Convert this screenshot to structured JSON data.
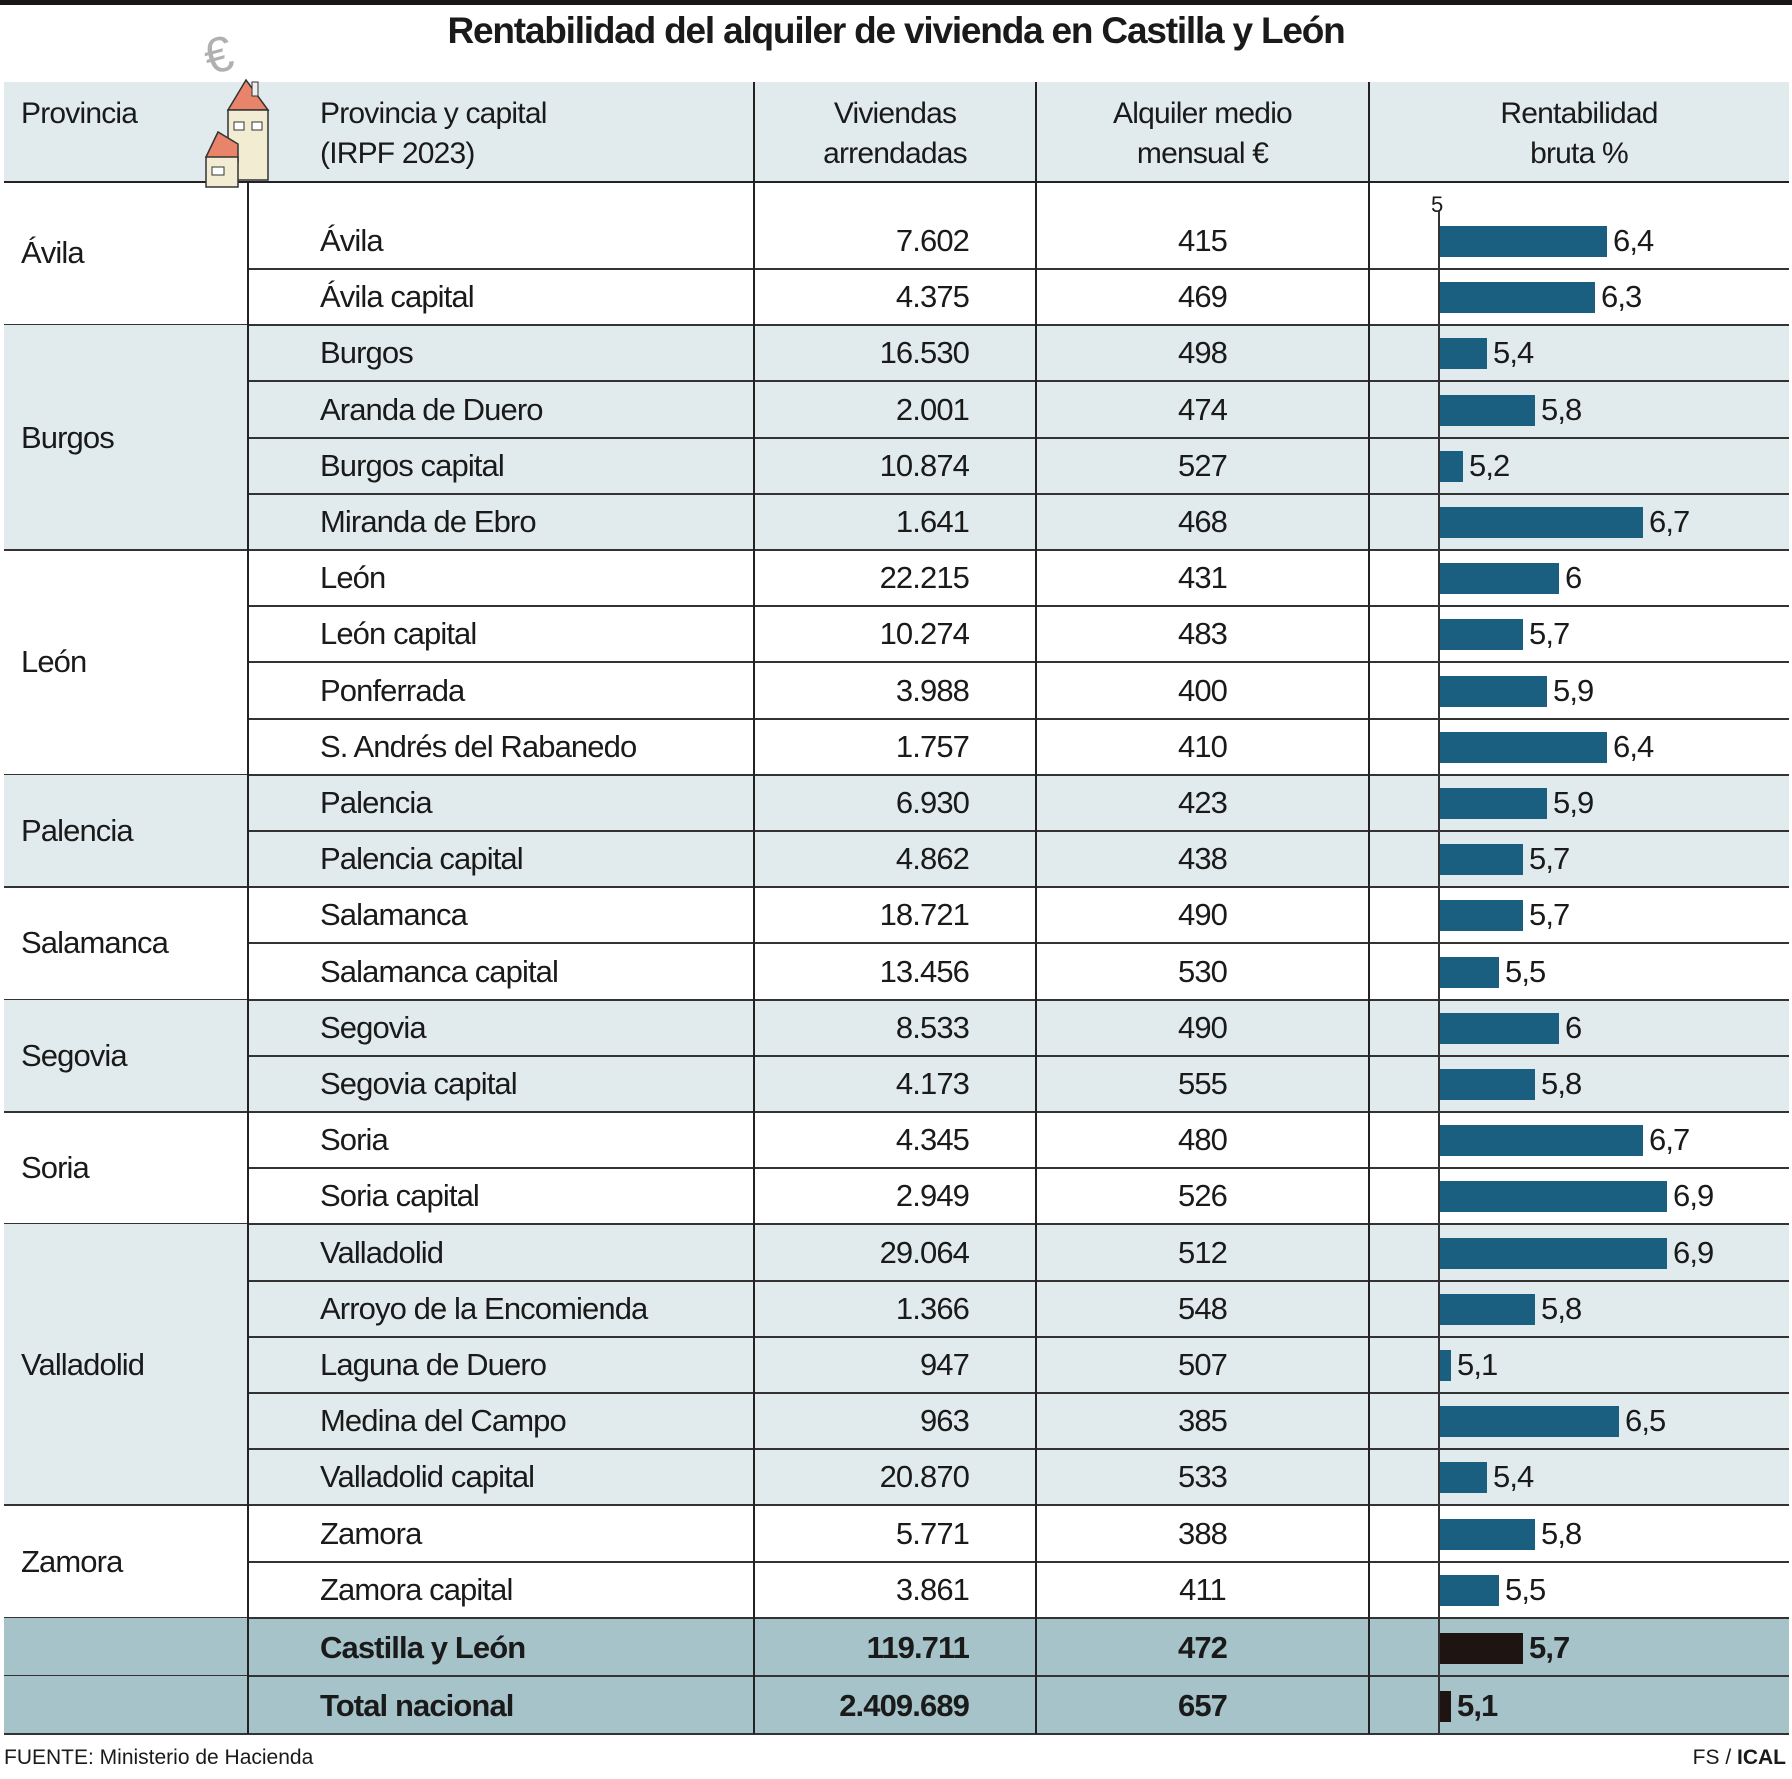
{
  "title": "Rentabilidad del alquiler de vivienda en Castilla y León",
  "header": {
    "provincia": "Provincia",
    "provincia_capital": [
      "Provincia y capital",
      "(IRPF 2023)"
    ],
    "viviendas": [
      "Viviendas",
      "arrendadas"
    ],
    "alquiler": [
      "Alquiler medio",
      "mensual €"
    ],
    "rentabilidad": [
      "Rentabilidad",
      "bruta %"
    ]
  },
  "icon": "house-with-euro-icon",
  "colors": {
    "band": "#e1ebed",
    "total_band": "#a5c3c9",
    "bar": "#1a5f80",
    "total_bar": "#1e1412"
  },
  "chart_data": {
    "type": "table",
    "axis_label": "5",
    "axis_origin": 5,
    "groups": [
      {
        "province": "Ávila",
        "shaded": false,
        "rows": [
          {
            "name": "Ávila",
            "viviendas": "7.602",
            "alquiler": "415",
            "rent": 6.4,
            "label": "6,4"
          },
          {
            "name": "Ávila capital",
            "viviendas": "4.375",
            "alquiler": "469",
            "rent": 6.3,
            "label": "6,3"
          }
        ]
      },
      {
        "province": "Burgos",
        "shaded": true,
        "rows": [
          {
            "name": "Burgos",
            "viviendas": "16.530",
            "alquiler": "498",
            "rent": 5.4,
            "label": "5,4"
          },
          {
            "name": "Aranda de Duero",
            "viviendas": "2.001",
            "alquiler": "474",
            "rent": 5.8,
            "label": "5,8"
          },
          {
            "name": "Burgos capital",
            "viviendas": "10.874",
            "alquiler": "527",
            "rent": 5.2,
            "label": "5,2"
          },
          {
            "name": "Miranda de Ebro",
            "viviendas": "1.641",
            "alquiler": "468",
            "rent": 6.7,
            "label": "6,7"
          }
        ]
      },
      {
        "province": "León",
        "shaded": false,
        "rows": [
          {
            "name": "León",
            "viviendas": "22.215",
            "alquiler": "431",
            "rent": 6,
            "label": "6"
          },
          {
            "name": "León capital",
            "viviendas": "10.274",
            "alquiler": "483",
            "rent": 5.7,
            "label": "5,7"
          },
          {
            "name": "Ponferrada",
            "viviendas": "3.988",
            "alquiler": "400",
            "rent": 5.9,
            "label": "5,9"
          },
          {
            "name": "S. Andrés del Rabanedo",
            "viviendas": "1.757",
            "alquiler": "410",
            "rent": 6.4,
            "label": "6,4"
          }
        ]
      },
      {
        "province": "Palencia",
        "shaded": true,
        "rows": [
          {
            "name": "Palencia",
            "viviendas": "6.930",
            "alquiler": "423",
            "rent": 5.9,
            "label": "5,9"
          },
          {
            "name": "Palencia capital",
            "viviendas": "4.862",
            "alquiler": "438",
            "rent": 5.7,
            "label": "5,7"
          }
        ]
      },
      {
        "province": "Salamanca",
        "shaded": false,
        "rows": [
          {
            "name": "Salamanca",
            "viviendas": "18.721",
            "alquiler": "490",
            "rent": 5.7,
            "label": "5,7"
          },
          {
            "name": "Salamanca capital",
            "viviendas": "13.456",
            "alquiler": "530",
            "rent": 5.5,
            "label": "5,5"
          }
        ]
      },
      {
        "province": "Segovia",
        "shaded": true,
        "rows": [
          {
            "name": "Segovia",
            "viviendas": "8.533",
            "alquiler": "490",
            "rent": 6,
            "label": "6"
          },
          {
            "name": "Segovia capital",
            "viviendas": "4.173",
            "alquiler": "555",
            "rent": 5.8,
            "label": "5,8"
          }
        ]
      },
      {
        "province": "Soria",
        "shaded": false,
        "rows": [
          {
            "name": "Soria",
            "viviendas": "4.345",
            "alquiler": "480",
            "rent": 6.7,
            "label": "6,7"
          },
          {
            "name": "Soria capital",
            "viviendas": "2.949",
            "alquiler": "526",
            "rent": 6.9,
            "label": "6,9"
          }
        ]
      },
      {
        "province": "Valladolid",
        "shaded": true,
        "rows": [
          {
            "name": "Valladolid",
            "viviendas": "29.064",
            "alquiler": "512",
            "rent": 6.9,
            "label": "6,9"
          },
          {
            "name": "Arroyo de la Encomienda",
            "viviendas": "1.366",
            "alquiler": "548",
            "rent": 5.8,
            "label": "5,8"
          },
          {
            "name": "Laguna de Duero",
            "viviendas": "947",
            "alquiler": "507",
            "rent": 5.1,
            "label": "5,1"
          },
          {
            "name": "Medina del Campo",
            "viviendas": "963",
            "alquiler": "385",
            "rent": 6.5,
            "label": "6,5"
          },
          {
            "name": "Valladolid capital",
            "viviendas": "20.870",
            "alquiler": "533",
            "rent": 5.4,
            "label": "5,4"
          }
        ]
      },
      {
        "province": "Zamora",
        "shaded": false,
        "rows": [
          {
            "name": "Zamora",
            "viviendas": "5.771",
            "alquiler": "388",
            "rent": 5.8,
            "label": "5,8"
          },
          {
            "name": "Zamora capital",
            "viviendas": "3.861",
            "alquiler": "411",
            "rent": 5.5,
            "label": "5,5"
          }
        ]
      }
    ],
    "totals": [
      {
        "name": "Castilla y León",
        "viviendas": "119.711",
        "alquiler": "472",
        "rent": 5.7,
        "label": "5,7"
      },
      {
        "name": "Total nacional",
        "viviendas": "2.409.689",
        "alquiler": "657",
        "rent": 5.1,
        "label": "5,1"
      }
    ]
  },
  "footer": {
    "source": "FUENTE: Ministerio de Hacienda",
    "credit_prefix": "FS / ",
    "credit_brand": "ICAL"
  }
}
